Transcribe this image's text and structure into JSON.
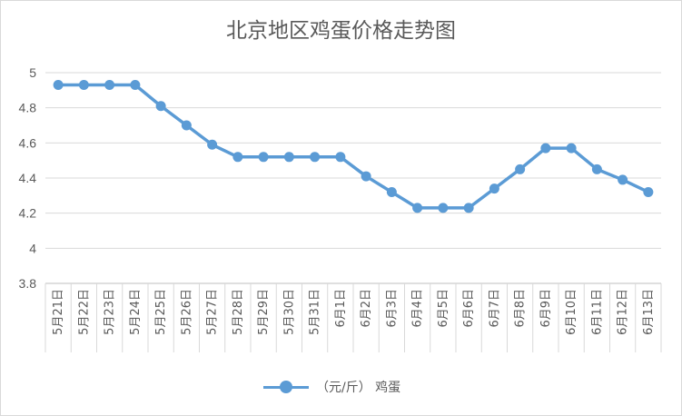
{
  "chart_data": {
    "type": "line",
    "title": "北京地区鸡蛋价格走势图",
    "categories": [
      "5月21日",
      "5月22日",
      "5月23日",
      "5月24日",
      "5月25日",
      "5月26日",
      "5月27日",
      "5月28日",
      "5月29日",
      "5月30日",
      "5月31日",
      "6月1日",
      "6月2日",
      "6月3日",
      "6月4日",
      "6月5日",
      "6月6日",
      "6月7日",
      "6月8日",
      "6月9日",
      "6月10日",
      "6月11日",
      "6月12日",
      "6月13日"
    ],
    "series": [
      {
        "name": "（元/斤） 鸡蛋",
        "color": "#5b9bd5",
        "values": [
          4.93,
          4.93,
          4.93,
          4.93,
          4.81,
          4.7,
          4.59,
          4.52,
          4.52,
          4.52,
          4.52,
          4.52,
          4.41,
          4.32,
          4.23,
          4.23,
          4.23,
          4.34,
          4.45,
          4.57,
          4.57,
          4.45,
          4.39,
          4.32
        ]
      }
    ],
    "yticks": [
      "3.8",
      "4",
      "4.2",
      "4.4",
      "4.6",
      "4.8",
      "5"
    ],
    "ylim": [
      3.8,
      5
    ],
    "grid": true,
    "legend": "bottom",
    "xlabel": "",
    "ylabel": ""
  },
  "colors": {
    "gridline": "#d9d9d9",
    "axis": "#bfbfbf",
    "text": "#595959"
  }
}
